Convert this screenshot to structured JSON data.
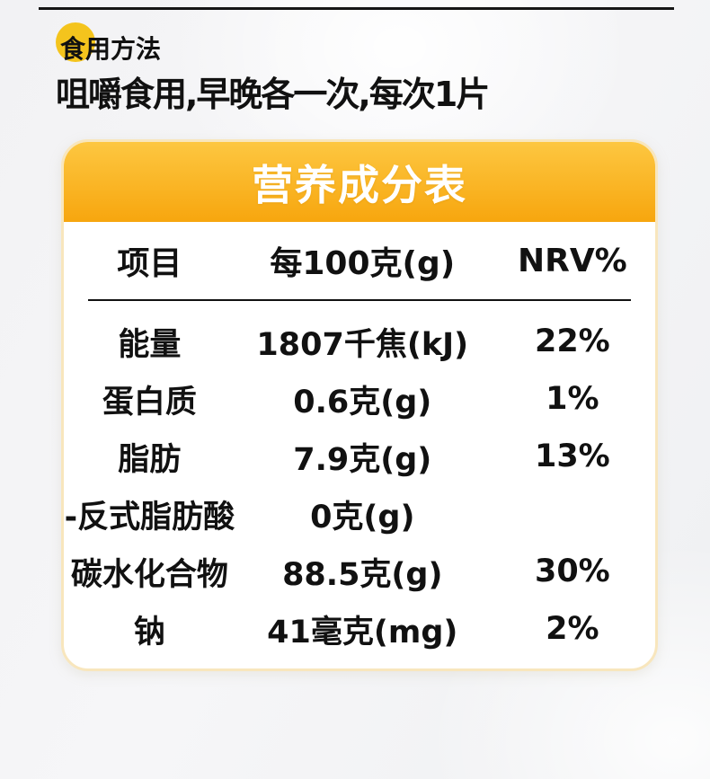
{
  "usage": {
    "badge_label": "食用方法",
    "instruction": "咀嚼食用,早晚各一次,每次1片",
    "badge_color": "#f4c41d"
  },
  "nutrition": {
    "title": "营养成分表",
    "header_gradient_top": "#fdc741",
    "header_gradient_bottom": "#f7a60e",
    "card_border_color": "#f8e6bd",
    "columns": [
      "项目",
      "每100克(g)",
      "NRV%"
    ],
    "rows": [
      {
        "item": "能量",
        "amount": "1807千焦(kJ)",
        "nrv": "22%"
      },
      {
        "item": "蛋白质",
        "amount": "0.6克(g)",
        "nrv": "1%"
      },
      {
        "item": "脂肪",
        "amount": "7.9克(g)",
        "nrv": "13%"
      },
      {
        "item": "-反式脂肪酸",
        "amount": "0克(g)",
        "nrv": ""
      },
      {
        "item": "碳水化合物",
        "amount": "88.5克(g)",
        "nrv": "30%"
      },
      {
        "item": "钠",
        "amount": "41毫克(mg)",
        "nrv": "2%"
      }
    ]
  }
}
